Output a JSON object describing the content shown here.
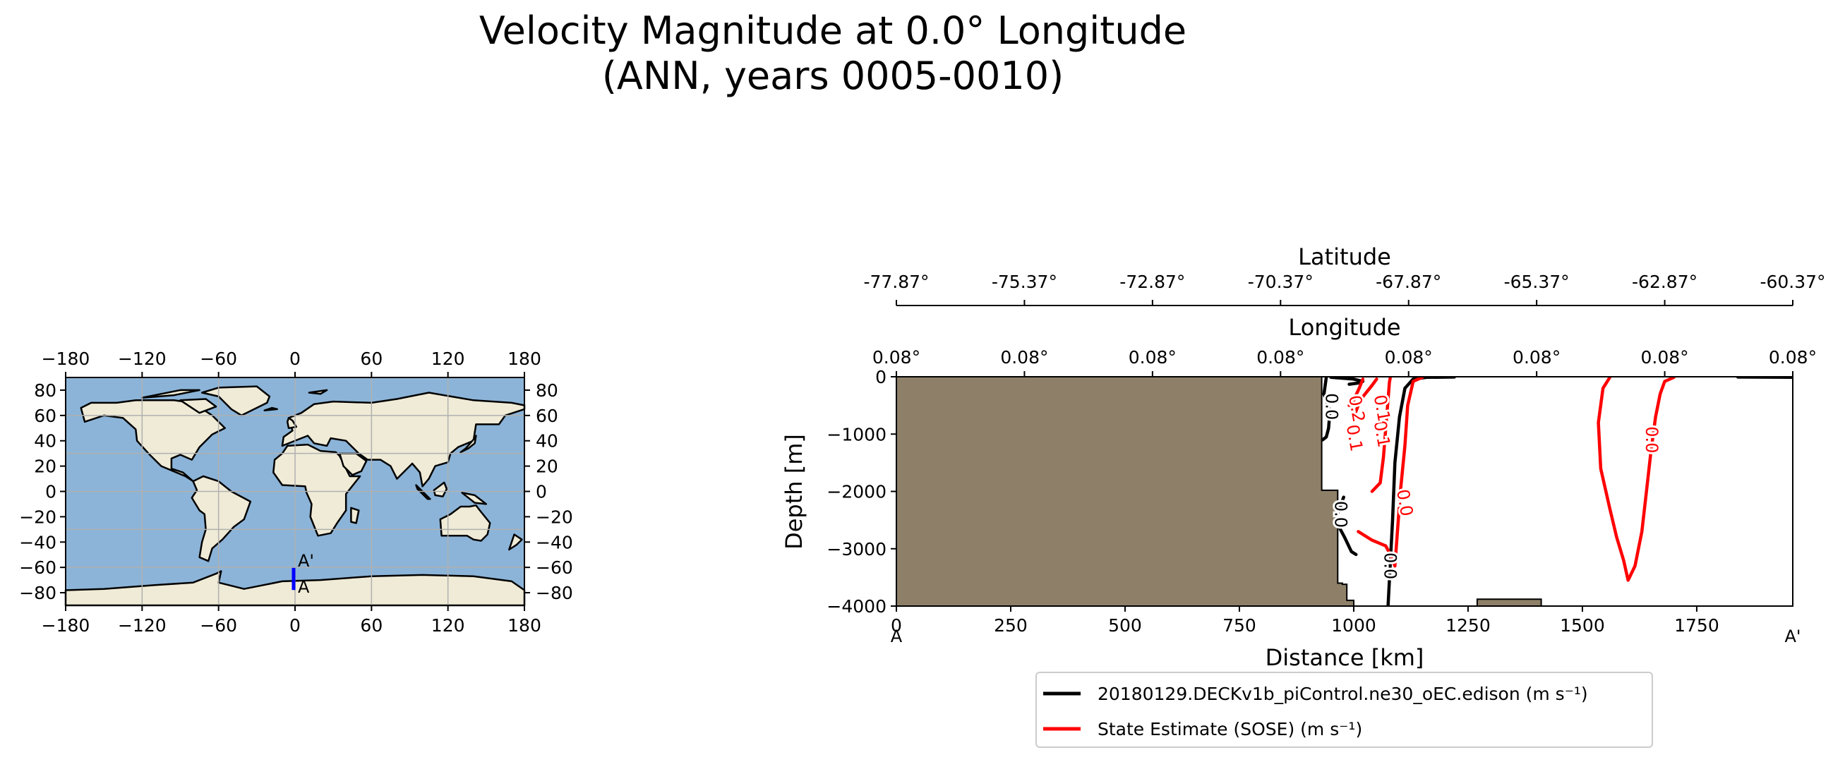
{
  "figure": {
    "title_line1": "Velocity Magnitude at 0.0° Longitude",
    "title_line2": "(ANN, years 0005-0010)"
  },
  "colors": {
    "ocean": "#8cb4d8",
    "land": "#efebd6",
    "coast": "#000000",
    "grid": "#b0b0b0",
    "transect": "#0000ff",
    "seafloor": "#8e8068",
    "model_line": "#000000",
    "obs_line": "#ff0000"
  },
  "map": {
    "x_ticks": [
      "−180",
      "−120",
      "−60",
      "0",
      "60",
      "120",
      "180"
    ],
    "y_ticks": [
      "80",
      "60",
      "40",
      "20",
      "0",
      "−20",
      "−40",
      "−60",
      "−80"
    ],
    "y_ticks_left": [
      "80",
      "60",
      "40",
      "20",
      "0",
      "−20",
      "−40",
      "−60",
      "−80"
    ],
    "y_ticks_right": [
      "80",
      "60",
      "40",
      "20",
      "0",
      "−20",
      "−40",
      "−60",
      "−80"
    ],
    "transect_start_label": "A",
    "transect_end_label": "A'",
    "transect_lon": 0,
    "transect_lat_range": [
      -77.87,
      -60.37
    ]
  },
  "chart_data": {
    "type": "line",
    "title": "Velocity Magnitude at 0.0° Longitude (ANN, years 0005-0010)",
    "xlabel": "Distance [km]",
    "ylabel": "Depth [m]",
    "xlim": [
      0,
      1960
    ],
    "ylim": [
      -4000,
      0
    ],
    "x_ticks": [
      "0",
      "250",
      "500",
      "750",
      "1000",
      "1250",
      "1500",
      "1750"
    ],
    "y_ticks": [
      "0",
      "−1000",
      "−2000",
      "−3000",
      "−4000"
    ],
    "start_label": "A",
    "end_label": "A'",
    "latitude_axis": {
      "label": "Latitude",
      "ticks": [
        "-77.87°",
        "-75.37°",
        "-72.87°",
        "-70.37°",
        "-67.87°",
        "-65.37°",
        "-62.87°",
        "-60.37°"
      ]
    },
    "longitude_axis": {
      "label": "Longitude",
      "ticks": [
        "0.08°",
        "0.08°",
        "0.08°",
        "0.08°",
        "0.08°",
        "0.08°",
        "0.08°",
        "0.08°"
      ]
    },
    "bathymetry": {
      "distance_km": [
        0,
        930,
        930,
        965,
        965,
        975,
        975,
        985,
        985,
        1000,
        1000,
        1010,
        1010,
        1270,
        1270,
        1410,
        1410,
        1960
      ],
      "depth_m": [
        0,
        0,
        -1980,
        -1980,
        -3600,
        -3600,
        -3620,
        -3620,
        -3900,
        -3900,
        -4000,
        -4000,
        -4000,
        -4000,
        -3880,
        -3880,
        -4000,
        -4000
      ]
    },
    "contour_labels": [
      {
        "text": "0.0",
        "series": "model"
      },
      {
        "text": "0.0",
        "series": "model"
      },
      {
        "text": "0.0",
        "series": "model"
      },
      {
        "text": "0.1",
        "series": "obs"
      },
      {
        "text": "0.2",
        "series": "obs"
      },
      {
        "text": "0.1",
        "series": "obs"
      },
      {
        "text": "0.1",
        "series": "obs"
      },
      {
        "text": "0.0",
        "series": "obs"
      },
      {
        "text": "0.0",
        "series": "obs"
      }
    ],
    "series": [
      {
        "name": "model",
        "label": "20180129.DECKv1b_piControl.ne30_oEC.edison (m s⁻¹)",
        "contours": [
          {
            "level": "0.0",
            "x": [
              940,
              935,
              948,
              945,
              940,
              932
            ],
            "y": [
              -10,
              -300,
              -600,
              -900,
              -1050,
              -1100
            ]
          },
          {
            "level": "0.0",
            "x": [
              978,
              960,
              980,
              995,
              1005
            ],
            "y": [
              -2100,
              -2500,
              -2800,
              -3050,
              -3100
            ]
          },
          {
            "level": "0.0",
            "x": [
              1075,
              1085,
              1090,
              1100,
              1112,
              1130,
              1160,
              1220
            ],
            "y": [
              -4000,
              -2500,
              -1500,
              -700,
              -200,
              -40,
              -10,
              -5
            ]
          },
          {
            "level": "0.0",
            "x": [
              950,
              1000,
              1020,
              1010,
              990
            ],
            "y": [
              -10,
              -40,
              -80,
              -110,
              -130
            ]
          },
          {
            "level": "0.0",
            "x": [
              1840,
              1960
            ],
            "y": [
              -5,
              -10
            ]
          }
        ]
      },
      {
        "name": "obs",
        "label": "State Estimate (SOSE) (m s⁻¹)",
        "contours": [
          {
            "level": "0.0",
            "x": [
              1090,
              1102,
              1112,
              1118,
              1130,
              1150
            ],
            "y": [
              -3300,
              -2000,
              -1200,
              -500,
              -80,
              -10
            ]
          },
          {
            "level": "0.0",
            "x": [
              1010,
              1040,
              1070,
              1080,
              1090
            ],
            "y": [
              -2700,
              -2850,
              -2950,
              -3100,
              -3300
            ]
          },
          {
            "level": "0.1",
            "x": [
              1040,
              1058,
              1065,
              1070,
              1075,
              1078,
              1080
            ],
            "y": [
              -2000,
              -1850,
              -1400,
              -900,
              -400,
              -100,
              -10
            ]
          },
          {
            "level": "0.1",
            "x": [
              1000,
              1010,
              1020,
              1030,
              1040,
              1050
            ],
            "y": [
              -700,
              -500,
              -350,
              -250,
              -150,
              -40
            ]
          },
          {
            "level": "0.2",
            "x": [
              990,
              1000,
              1005,
              1012,
              1020
            ],
            "y": [
              -500,
              -420,
              -320,
              -200,
              -40
            ]
          },
          {
            "level": "0.0",
            "x": [
              1560,
              1545,
              1535,
              1540,
              1560,
              1575,
              1590,
              1600,
              1615,
              1630,
              1640,
              1650,
              1660,
              1670,
              1680,
              1700
            ],
            "y": [
              -10,
              -200,
              -800,
              -1600,
              -2300,
              -2800,
              -3200,
              -3550,
              -3300,
              -2700,
              -2000,
              -1300,
              -700,
              -300,
              -80,
              -10
            ]
          }
        ]
      }
    ]
  }
}
